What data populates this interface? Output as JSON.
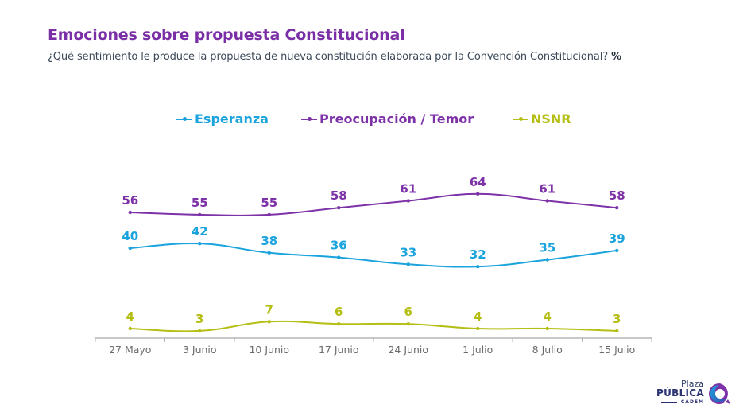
{
  "header": {
    "title": "Emociones sobre propuesta Constitucional",
    "subtitle": "¿Qué sentimiento le produce la propuesta de nueva constitución elaborada por la Convención Constitucional?",
    "subtitle_unit": "%"
  },
  "colors": {
    "title": "#7a2fa6",
    "esperanza": "#1aa3dc",
    "preocupacion": "#7d32a8",
    "nsnr": "#b5be12",
    "axis": "#b5b5b5",
    "tick_label": "#6b6b6b"
  },
  "chart_data": {
    "type": "line",
    "title": "Emociones sobre propuesta Constitucional",
    "xlabel": "",
    "ylabel": "%",
    "x": [
      "27 Mayo",
      "3 Junio",
      "10 Junio",
      "17 Junio",
      "24 Junio",
      "1 Julio",
      "8 Julio",
      "15 Julio"
    ],
    "series": [
      {
        "key": "esperanza",
        "name": "Esperanza",
        "color": "#1aa3dc",
        "values": [
          40,
          42,
          38,
          36,
          33,
          32,
          35,
          39
        ]
      },
      {
        "key": "preocupacion",
        "name": "Preocupación / Temor",
        "color": "#7d32a8",
        "values": [
          56,
          55,
          55,
          58,
          61,
          64,
          61,
          58
        ]
      },
      {
        "key": "nsnr",
        "name": "NSNR",
        "color": "#b5be12",
        "values": [
          4,
          3,
          7,
          6,
          6,
          4,
          4,
          3
        ]
      }
    ],
    "legend": "top-center",
    "grid": false,
    "data_labels": true
  },
  "logo": {
    "line1": "Plaza",
    "line2": "PÚBLICA",
    "line3": "CADEM"
  }
}
